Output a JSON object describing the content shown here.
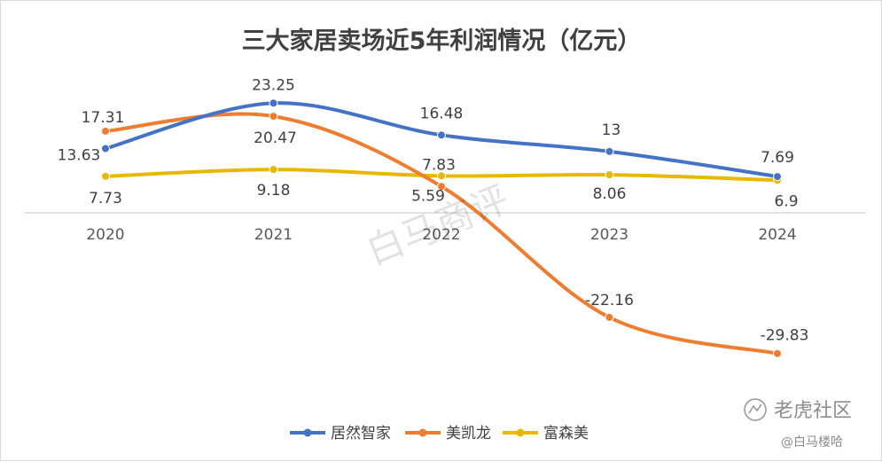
{
  "chart_data": {
    "type": "line",
    "title": "三大家居卖场近5年利润情况（亿元）",
    "categories": [
      "2020",
      "2021",
      "2022",
      "2023",
      "2024"
    ],
    "series": [
      {
        "name": "居然智家",
        "color": "#4472c4",
        "values": [
          13.63,
          23.25,
          16.48,
          13,
          7.69
        ],
        "labels": [
          "13.63",
          "23.25",
          "16.48",
          "13",
          "7.69"
        ]
      },
      {
        "name": "美凯龙",
        "color": "#ed7d31",
        "values": [
          17.31,
          20.47,
          5.59,
          -22.16,
          -29.83
        ],
        "labels": [
          "17.31",
          "20.47",
          "5.59",
          "-22.16",
          "-29.83"
        ]
      },
      {
        "name": "富森美",
        "color": "#e6b800",
        "values": [
          7.73,
          9.18,
          7.83,
          8.06,
          6.9
        ],
        "labels": [
          "7.73",
          "9.18",
          "7.83",
          "8.06",
          "6.9"
        ]
      }
    ],
    "smooth": true,
    "grid": false,
    "legend": "bottom"
  },
  "watermarks": {
    "center": "白马商评",
    "logo": "老虎社区",
    "handle": "@白马楼哈"
  }
}
